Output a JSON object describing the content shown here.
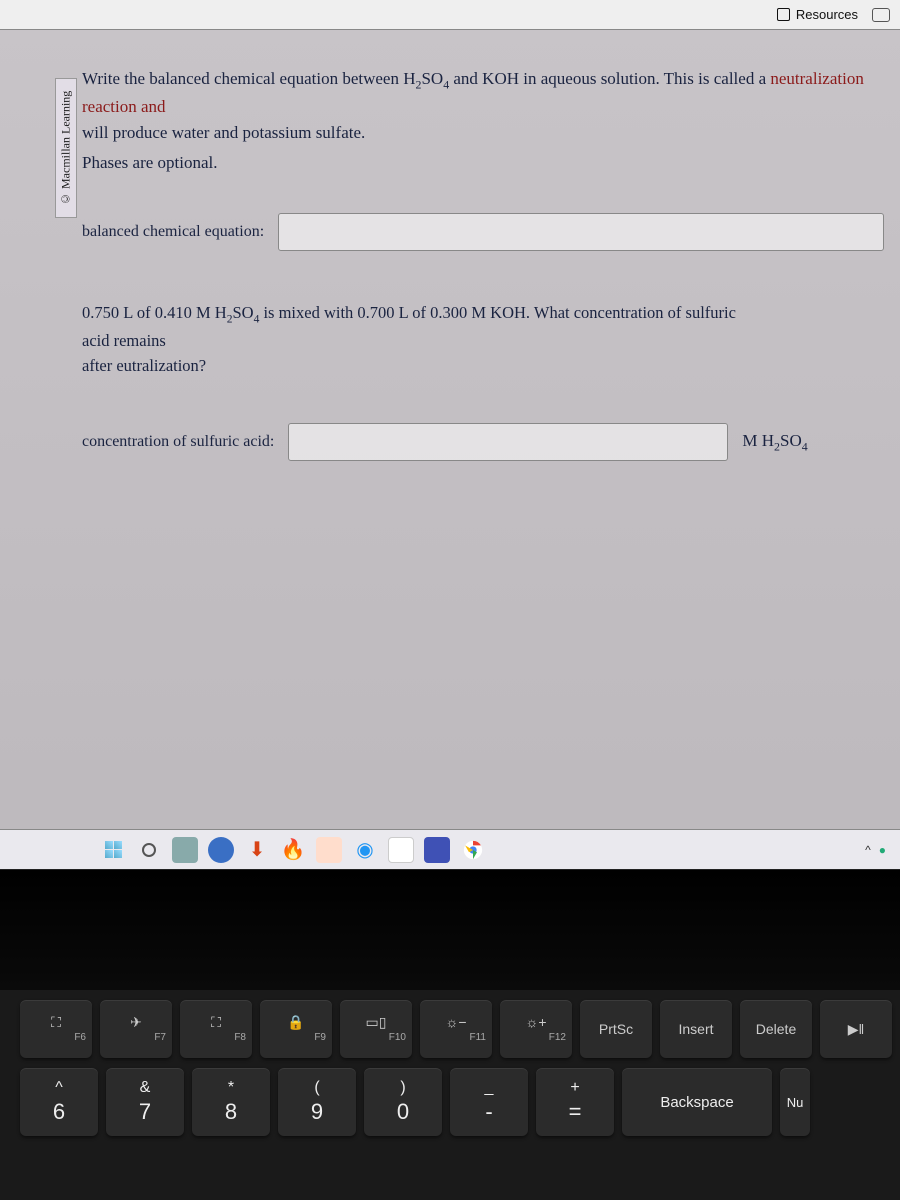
{
  "topbar": {
    "resources": "Resources"
  },
  "sidebar": {
    "copyright": "© Macmillan Learning"
  },
  "question": {
    "line1a": "Write the balanced chemical equation between H",
    "line1b": "SO",
    "line1c": " and KOH in aqueous solution. This is called a ",
    "line1d": "neutralization reaction and",
    "line2": "will produce water and potassium sulfate.",
    "hint": "Phases are optional.",
    "labelEq": "balanced chemical equation:",
    "part2a": "0.750 L of 0.410 M H",
    "part2b": "SO",
    "part2c": " is mixed with 0.700 L of 0.300 M KOH. What concentration of sulfuric acid remains",
    "part2d": "after eutralization?",
    "labelConc": "concentration of sulfuric acid:",
    "unitA": "M H",
    "unitB": "SO"
  },
  "taskbar": {
    "caret": "^"
  },
  "keyboard": {
    "fnRow": [
      {
        "icon": "⛶",
        "fn": "F6"
      },
      {
        "icon": "✈",
        "fn": "F7"
      },
      {
        "icon": "⛶",
        "fn": "F8"
      },
      {
        "icon": "🔒",
        "fn": "F9"
      },
      {
        "icon": "▭▯",
        "fn": "F10"
      },
      {
        "icon": "☼−",
        "fn": "F11"
      },
      {
        "icon": "☼+",
        "fn": "F12"
      },
      {
        "icon": "PrtSc",
        "fn": ""
      },
      {
        "icon": "Insert",
        "fn": ""
      },
      {
        "icon": "Delete",
        "fn": ""
      },
      {
        "icon": "▶‖",
        "fn": ""
      }
    ],
    "numRow": [
      {
        "sym": "^",
        "num": "6"
      },
      {
        "sym": "&",
        "num": "7"
      },
      {
        "sym": "*",
        "num": "8"
      },
      {
        "sym": "(",
        "num": "9"
      },
      {
        "sym": ")",
        "num": "0"
      },
      {
        "sym": "_",
        "num": "-"
      },
      {
        "sym": "+",
        "num": "="
      }
    ],
    "backspace": "Backspace",
    "nu": "Nu"
  }
}
